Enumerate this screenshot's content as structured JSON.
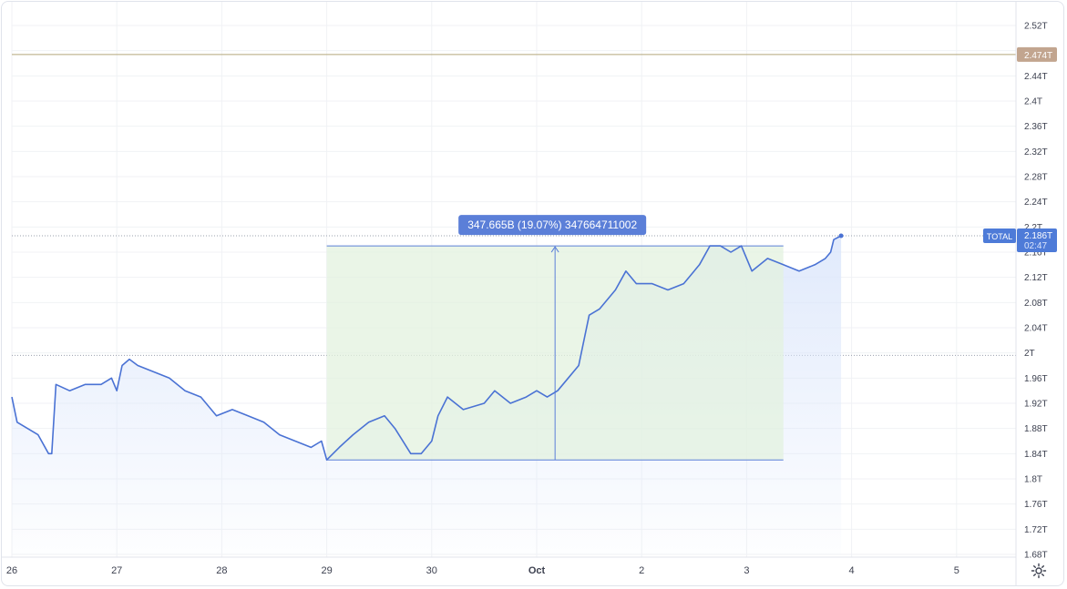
{
  "colors": {
    "line": "#4a72d4",
    "area_top": "#dbe6fb",
    "measure_fill": "#e3f1df",
    "measure_stroke": "#5b7fd8",
    "measure_label_bg": "#5b7fd8",
    "alert_line": "#b5a77a",
    "alert_label_bg": "#c2a58f",
    "total_label_bg": "#4e7bd8",
    "grid": "#f0f2f5"
  },
  "measure_label": "347.665B (19.07%) 347664711002",
  "alert_label": "2.474T",
  "price_tag": {
    "name": "TOTAL",
    "value": "2.186T",
    "countdown": "02:47"
  },
  "settings_icon": "gear-icon",
  "chart_data": {
    "type": "line",
    "series": [
      {
        "name": "TOTAL",
        "points": [
          [
            0.0,
            1.93
          ],
          [
            0.05,
            1.89
          ],
          [
            0.15,
            1.88
          ],
          [
            0.25,
            1.87
          ],
          [
            0.35,
            1.84
          ],
          [
            0.38,
            1.84
          ],
          [
            0.42,
            1.95
          ],
          [
            0.55,
            1.94
          ],
          [
            0.7,
            1.95
          ],
          [
            0.85,
            1.95
          ],
          [
            0.95,
            1.96
          ],
          [
            1.0,
            1.94
          ],
          [
            1.05,
            1.98
          ],
          [
            1.12,
            1.99
          ],
          [
            1.2,
            1.98
          ],
          [
            1.35,
            1.97
          ],
          [
            1.5,
            1.96
          ],
          [
            1.65,
            1.94
          ],
          [
            1.8,
            1.93
          ],
          [
            1.95,
            1.9
          ],
          [
            2.1,
            1.91
          ],
          [
            2.25,
            1.9
          ],
          [
            2.4,
            1.89
          ],
          [
            2.55,
            1.87
          ],
          [
            2.7,
            1.86
          ],
          [
            2.85,
            1.85
          ],
          [
            2.95,
            1.86
          ],
          [
            3.0,
            1.83
          ],
          [
            3.12,
            1.85
          ],
          [
            3.25,
            1.87
          ],
          [
            3.4,
            1.89
          ],
          [
            3.55,
            1.9
          ],
          [
            3.65,
            1.88
          ],
          [
            3.8,
            1.84
          ],
          [
            3.9,
            1.84
          ],
          [
            4.0,
            1.86
          ],
          [
            4.06,
            1.9
          ],
          [
            4.15,
            1.93
          ],
          [
            4.3,
            1.91
          ],
          [
            4.5,
            1.92
          ],
          [
            4.6,
            1.94
          ],
          [
            4.75,
            1.92
          ],
          [
            4.9,
            1.93
          ],
          [
            5.0,
            1.94
          ],
          [
            5.1,
            1.93
          ],
          [
            5.2,
            1.94
          ],
          [
            5.3,
            1.96
          ],
          [
            5.4,
            1.98
          ],
          [
            5.5,
            2.06
          ],
          [
            5.6,
            2.07
          ],
          [
            5.75,
            2.1
          ],
          [
            5.85,
            2.13
          ],
          [
            5.95,
            2.11
          ],
          [
            6.1,
            2.11
          ],
          [
            6.25,
            2.1
          ],
          [
            6.4,
            2.11
          ],
          [
            6.55,
            2.14
          ],
          [
            6.65,
            2.17
          ],
          [
            6.75,
            2.17
          ],
          [
            6.85,
            2.16
          ],
          [
            6.95,
            2.17
          ],
          [
            7.05,
            2.13
          ],
          [
            7.2,
            2.15
          ],
          [
            7.35,
            2.14
          ],
          [
            7.5,
            2.13
          ],
          [
            7.65,
            2.14
          ],
          [
            7.75,
            2.15
          ],
          [
            7.8,
            2.16
          ],
          [
            7.83,
            2.18
          ],
          [
            7.9,
            2.186
          ]
        ]
      }
    ],
    "x_ticks": [
      "26",
      "27",
      "28",
      "29",
      "30",
      "Oct",
      "2",
      "3",
      "4",
      "5"
    ],
    "xlim": [
      0,
      9.0
    ],
    "y_ticks": [
      "1.68T",
      "1.72T",
      "1.76T",
      "1.8T",
      "1.84T",
      "1.88T",
      "1.92T",
      "1.96T",
      "2T",
      "2.04T",
      "2.08T",
      "2.12T",
      "2.16T",
      "2.2T",
      "2.24T",
      "2.28T",
      "2.32T",
      "2.36T",
      "2.4T",
      "2.44T",
      "2.48T",
      "2.52T"
    ],
    "ylim": [
      1.68,
      2.52
    ],
    "reference_lines": {
      "alert": 2.474,
      "last_price": 2.186,
      "dotted": 1.996
    },
    "measurement": {
      "x_start": 3.0,
      "x_end": 7.35,
      "y_start": 1.83,
      "y_end": 2.17,
      "change": "347.665B",
      "percent": "19.07%",
      "raw": "347664711002"
    },
    "grid": true
  }
}
